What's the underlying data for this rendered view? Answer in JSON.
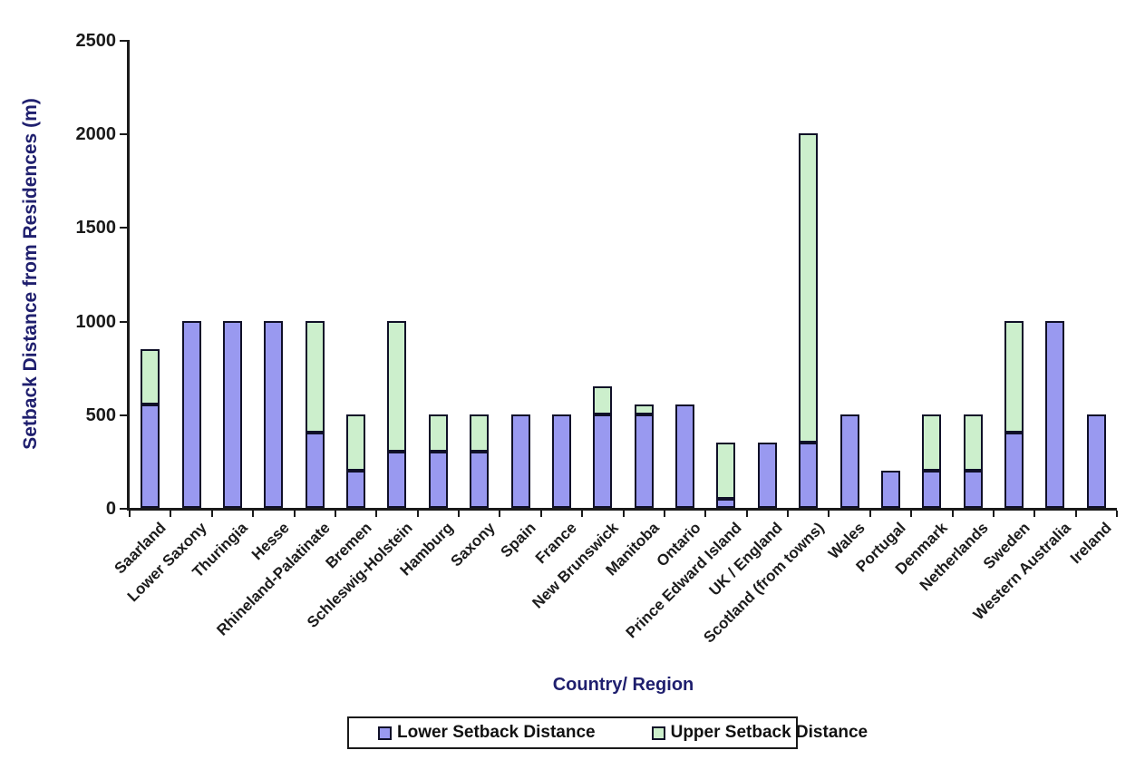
{
  "chart_data": {
    "type": "bar",
    "stacked": true,
    "title": "",
    "xlabel": "Country/ Region",
    "ylabel": "Setback Distance from Residences (m)",
    "ylim": [
      0,
      2500
    ],
    "yticks": [
      0,
      500,
      1000,
      1500,
      2000,
      2500
    ],
    "grid": false,
    "legend_position": "bottom",
    "legend": [
      "Lower Setback Distance",
      "Upper Setback Distance"
    ],
    "colors": {
      "lower_fill": "#9999F0",
      "upper_fill": "#CCEFCC",
      "bar_border": "#101028",
      "axis_title_text": "#1F1F6E",
      "tick_text": "#1A1A1A",
      "background": "#FFFFFF"
    },
    "categories": [
      "Saarland",
      "Lower Saxony",
      "Thuringia",
      "Hesse",
      "Rhineland-Palatinate",
      "Bremen",
      "Schleswig-Holstein",
      "Hamburg",
      "Saxony",
      "Spain",
      "France",
      "New Brunswick",
      "Manitoba",
      "Ontario",
      "Prince Edward Island",
      "UK / England",
      "Scotland (from towns)",
      "Wales",
      "Portugal",
      "Denmark",
      "Netherlands",
      "Sweden",
      "Western Australia",
      "Ireland"
    ],
    "points": [
      {
        "category": "Saarland",
        "lower": 550,
        "upper": 850
      },
      {
        "category": "Lower Saxony",
        "lower": 1000,
        "upper": null
      },
      {
        "category": "Thuringia",
        "lower": 1000,
        "upper": null
      },
      {
        "category": "Hesse",
        "lower": 1000,
        "upper": null
      },
      {
        "category": "Rhineland-Palatinate",
        "lower": 400,
        "upper": 1000
      },
      {
        "category": "Bremen",
        "lower": 200,
        "upper": 500
      },
      {
        "category": "Schleswig-Holstein",
        "lower": 300,
        "upper": 1000
      },
      {
        "category": "Hamburg",
        "lower": 300,
        "upper": 500
      },
      {
        "category": "Saxony",
        "lower": 300,
        "upper": 500
      },
      {
        "category": "Spain",
        "lower": 500,
        "upper": null
      },
      {
        "category": "France",
        "lower": 500,
        "upper": null
      },
      {
        "category": "New Brunswick",
        "lower": 500,
        "upper": 650
      },
      {
        "category": "Manitoba",
        "lower": 500,
        "upper": 550
      },
      {
        "category": "Ontario",
        "lower": 550,
        "upper": null
      },
      {
        "category": "Prince Edward Island",
        "lower": 50,
        "upper": 350
      },
      {
        "category": "UK / England",
        "lower": 350,
        "upper": null
      },
      {
        "category": "Scotland (from towns)",
        "lower": 350,
        "upper": 2000
      },
      {
        "category": "Wales",
        "lower": 500,
        "upper": null
      },
      {
        "category": "Portugal",
        "lower": 200,
        "upper": null
      },
      {
        "category": "Denmark",
        "lower": 200,
        "upper": 500
      },
      {
        "category": "Netherlands",
        "lower": 200,
        "upper": 500
      },
      {
        "category": "Sweden",
        "lower": 400,
        "upper": 1000
      },
      {
        "category": "Western Australia",
        "lower": 1000,
        "upper": null
      },
      {
        "category": "Ireland",
        "lower": 500,
        "upper": null
      }
    ]
  }
}
